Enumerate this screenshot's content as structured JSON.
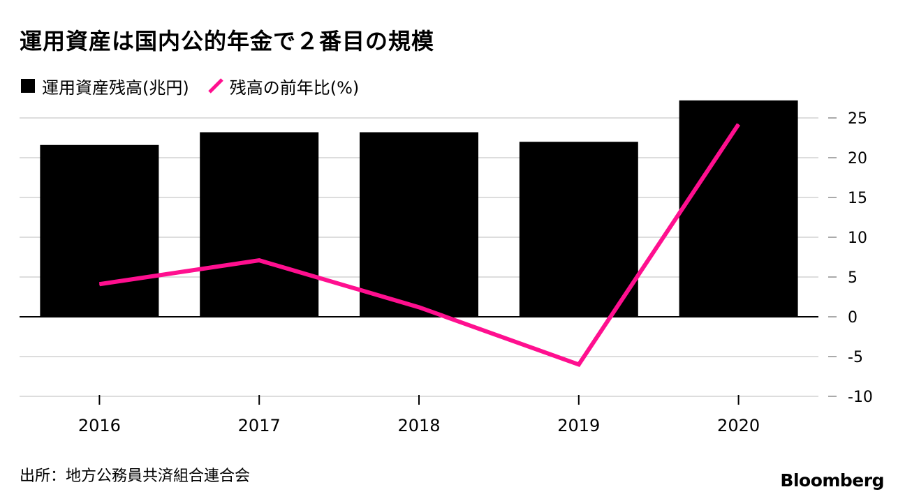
{
  "title": "運用資産は国内公的年金で２番目の規模",
  "legend": {
    "bar_label": "運用資産残高(兆円)",
    "line_label": "残高の前年比(%)"
  },
  "source": "出所：地方公務員共済組合連合会",
  "brand": "Bloomberg",
  "colors": {
    "bar": "#000000",
    "line": "#ff0f8f",
    "grid": "#dddddd",
    "axis": "#000000"
  },
  "chart_data": {
    "type": "bar+line",
    "categories": [
      "2016",
      "2017",
      "2018",
      "2019",
      "2020"
    ],
    "series": [
      {
        "name": "運用資産残高(兆円)",
        "type": "bar",
        "values": [
          21.6,
          23.2,
          23.2,
          22.0,
          27.2
        ]
      },
      {
        "name": "残高の前年比(%)",
        "type": "line",
        "values": [
          4.1,
          7.1,
          1.2,
          -6.0,
          24.2
        ]
      }
    ],
    "ylim": [
      -10,
      25
    ],
    "yticks": [
      25,
      20,
      15,
      10,
      5,
      0,
      -5,
      -10
    ],
    "y_axis_side": "right",
    "grid": true
  }
}
